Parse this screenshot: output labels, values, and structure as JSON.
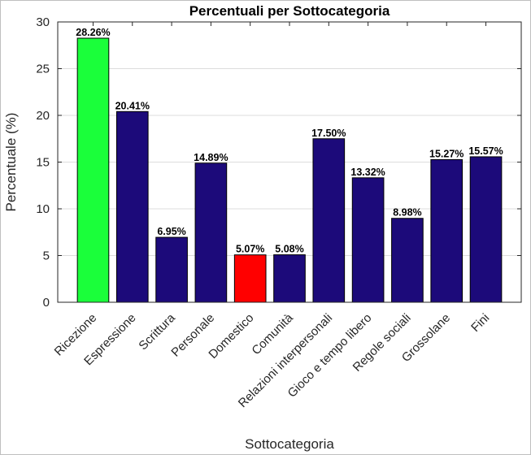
{
  "chart_data": {
    "type": "bar",
    "title": "Percentuali per Sottocategoria",
    "xlabel": "Sottocategoria",
    "ylabel": "Percentuale (%)",
    "ylim": [
      0,
      30
    ],
    "yticks": [
      0,
      5,
      10,
      15,
      20,
      25,
      30
    ],
    "grid": true,
    "categories": [
      "Ricezione",
      "Espressione",
      "Scrittura",
      "Personale",
      "Domestico",
      "Comunità",
      "Relazioni interpersonali",
      "Gioco e tempo libero",
      "Regole sociali",
      "Grossolane",
      "Fini"
    ],
    "values": [
      28.26,
      20.41,
      6.95,
      14.89,
      5.07,
      5.08,
      17.5,
      13.32,
      8.98,
      15.27,
      15.57
    ],
    "value_labels": [
      "28.26%",
      "20.41%",
      "6.95%",
      "14.89%",
      "5.07%",
      "5.08%",
      "17.50%",
      "13.32%",
      "8.98%",
      "15.27%",
      "15.57%"
    ],
    "colors": [
      "#1aff3a",
      "#1c0a7a",
      "#1c0a7a",
      "#1c0a7a",
      "#ff0000",
      "#1c0a7a",
      "#1c0a7a",
      "#1c0a7a",
      "#1c0a7a",
      "#1c0a7a",
      "#1c0a7a"
    ]
  }
}
